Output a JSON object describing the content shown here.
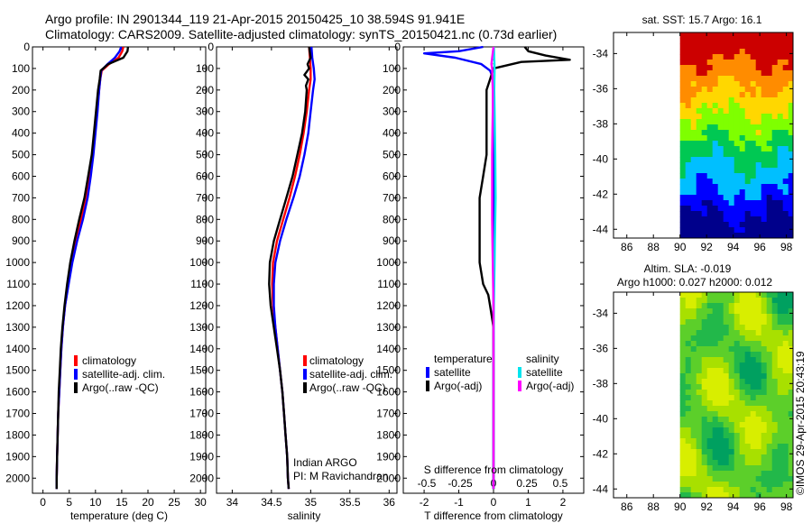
{
  "title_line1": "Argo profile: IN 2901344_119 21-Apr-2015 20150425_10 38.594S 91.941E",
  "title_line2": "Climatology: CARS2009. Satellite-adjusted climatology: synTS_20150421.nc (0.73d earlier)",
  "credit": "©IMOS 29-Apr-2015 20:43:19",
  "chart_data": [
    {
      "id": "temperature",
      "type": "line",
      "xlabel": "temperature (deg C)",
      "xlim": [
        -2,
        31
      ],
      "xticks": [
        "0",
        "5",
        "10",
        "15",
        "20",
        "25",
        "30"
      ],
      "ylim": [
        2070,
        0
      ],
      "yticks": [
        "0",
        "100",
        "200",
        "300",
        "400",
        "500",
        "600",
        "700",
        "800",
        "900",
        "1000",
        "1100",
        "1200",
        "1300",
        "1400",
        "1500",
        "1600",
        "1700",
        "1800",
        "1900",
        "2000"
      ],
      "legend": [
        "climatology",
        "satellite-adj. clim.",
        "Argo(..raw -QC)"
      ],
      "colors": [
        "#ff0000",
        "#0000ff",
        "#000000"
      ],
      "series": [
        {
          "name": "climatology",
          "depth": [
            0,
            20,
            50,
            80,
            110,
            150,
            200,
            300,
            400,
            500,
            600,
            700,
            800,
            900,
            1000,
            1100,
            1200,
            1300,
            1400,
            1500,
            1600,
            1700,
            1800,
            1900,
            2000,
            2050
          ],
          "values": [
            15.3,
            15.1,
            14.4,
            12.6,
            11.2,
            10.9,
            10.7,
            10.3,
            9.9,
            9.5,
            8.9,
            8.3,
            7.3,
            6.3,
            5.5,
            4.8,
            4.2,
            3.8,
            3.5,
            3.3,
            3.1,
            2.9,
            2.8,
            2.7,
            2.6,
            2.6
          ]
        },
        {
          "name": "satellite-adj. clim.",
          "depth": [
            0,
            20,
            50,
            80,
            110,
            150,
            200,
            300,
            400,
            500,
            600,
            700,
            800,
            900,
            1000,
            1100,
            1200,
            1300,
            1400,
            1500,
            1600,
            1700,
            1800,
            1900,
            2000,
            2050
          ],
          "values": [
            14.9,
            14.6,
            13.7,
            12.3,
            11.1,
            10.9,
            10.7,
            10.4,
            10.0,
            9.6,
            9.1,
            8.5,
            7.6,
            6.5,
            5.6,
            4.9,
            4.2,
            3.8,
            3.5,
            3.3,
            3.1,
            2.9,
            2.8,
            2.7,
            2.6,
            2.6
          ]
        },
        {
          "name": "Argo(..raw -QC)",
          "depth": [
            0,
            20,
            50,
            80,
            110,
            150,
            200,
            300,
            400,
            500,
            600,
            700,
            800,
            900,
            1000,
            1100,
            1200,
            1300,
            1400,
            1500,
            1600,
            1700,
            1800,
            1900,
            2000,
            2050
          ],
          "values": [
            16.2,
            16.1,
            15.3,
            12.4,
            11.0,
            10.8,
            10.5,
            10.1,
            9.7,
            9.3,
            8.6,
            7.9,
            6.9,
            6.0,
            5.2,
            4.6,
            4.1,
            3.7,
            3.4,
            3.2,
            3.0,
            2.9,
            2.8,
            2.7,
            2.6,
            2.6
          ]
        }
      ]
    },
    {
      "id": "salinity",
      "type": "line",
      "xlabel": "salinity",
      "xlim": [
        33.8,
        36.1
      ],
      "xticks": [
        "34",
        "34.5",
        "35",
        "35.5",
        "36"
      ],
      "ylim": [
        2070,
        0
      ],
      "legend": [
        "climatology",
        "satellite-adj. clim.",
        "Argo(..raw -QC)"
      ],
      "colors": [
        "#ff0000",
        "#0000ff",
        "#000000"
      ],
      "note_line1": "Indian ARGO",
      "note_line2": "PI: M Ravichandran",
      "series": [
        {
          "name": "climatology",
          "depth": [
            0,
            50,
            100,
            150,
            200,
            300,
            400,
            500,
            600,
            700,
            800,
            900,
            1000,
            1100,
            1200,
            1300,
            1400,
            1500,
            1600,
            1700,
            1800,
            1900,
            2000,
            2050
          ],
          "values": [
            34.98,
            34.99,
            35.0,
            35.0,
            34.98,
            34.95,
            34.91,
            34.86,
            34.8,
            34.73,
            34.65,
            34.57,
            34.52,
            34.51,
            34.52,
            34.55,
            34.58,
            34.61,
            34.64,
            34.66,
            34.68,
            34.7,
            34.71,
            34.72
          ]
        },
        {
          "name": "satellite-adj. clim.",
          "depth": [
            0,
            50,
            100,
            150,
            200,
            300,
            400,
            500,
            600,
            700,
            800,
            900,
            1000,
            1100,
            1200,
            1300,
            1400,
            1500,
            1600,
            1700,
            1800,
            1900,
            2000,
            2050
          ],
          "values": [
            35.01,
            35.02,
            35.04,
            35.05,
            35.03,
            35.0,
            34.97,
            34.92,
            34.86,
            34.78,
            34.69,
            34.61,
            34.55,
            34.53,
            34.53,
            34.55,
            34.58,
            34.61,
            34.64,
            34.66,
            34.68,
            34.7,
            34.71,
            34.72
          ]
        },
        {
          "name": "Argo(..raw -QC)",
          "depth": [
            0,
            50,
            80,
            100,
            130,
            150,
            180,
            200,
            300,
            400,
            500,
            600,
            700,
            800,
            900,
            1000,
            1100,
            1200,
            1300,
            1400,
            1500,
            1600,
            1700,
            1800,
            1900,
            2000,
            2050
          ],
          "values": [
            34.98,
            35.0,
            34.96,
            34.98,
            34.92,
            34.97,
            34.94,
            34.95,
            34.93,
            34.89,
            34.83,
            34.77,
            34.69,
            34.61,
            34.53,
            34.48,
            34.47,
            34.49,
            34.53,
            34.57,
            34.61,
            34.64,
            34.66,
            34.68,
            34.7,
            34.71,
            34.72
          ]
        }
      ]
    },
    {
      "id": "differences",
      "type": "line",
      "xlabel": "T difference from climatology",
      "xlabel_top": "S difference from climatology",
      "xlim": [
        -2.6,
        2.6
      ],
      "xticks": [
        "-2",
        "-1",
        "0",
        "1",
        "2"
      ],
      "xticks_top": [
        "-0.5",
        "-0.25",
        "0",
        "0.25",
        "0.5"
      ],
      "ylim": [
        2070,
        0
      ],
      "legend_header_left": "temperature",
      "legend_header_right": "salinity",
      "legend": [
        "satellite",
        "Argo(-adj)",
        "satellite",
        "Argo(-adj)"
      ],
      "colors": [
        "#0000ff",
        "#000000",
        "#00e5ee",
        "#ff00ff"
      ],
      "series": [
        {
          "name": "temperature satellite",
          "depth": [
            0,
            20,
            30,
            50,
            80,
            110,
            150,
            200,
            300,
            500,
            1000,
            2000,
            2050
          ],
          "values": [
            -0.3,
            -1.0,
            -2.0,
            -1.1,
            -0.35,
            -0.1,
            0.0,
            0.0,
            0.0,
            0.0,
            0.0,
            0.0,
            0.0
          ]
        },
        {
          "name": "temperature Argo(-adj)",
          "depth": [
            0,
            20,
            40,
            60,
            70,
            100,
            150,
            200,
            300,
            400,
            500,
            600,
            700,
            800,
            900,
            1000,
            1100,
            1150,
            1200,
            1250,
            1300,
            1400,
            1500,
            1600,
            1700,
            1800,
            1900,
            2000,
            2050
          ],
          "values": [
            0.9,
            1.0,
            1.5,
            2.2,
            0.8,
            0.0,
            -0.1,
            -0.2,
            -0.2,
            -0.2,
            -0.2,
            -0.3,
            -0.4,
            -0.4,
            -0.4,
            -0.4,
            -0.3,
            -0.15,
            -0.1,
            -0.05,
            0.0,
            0.0,
            0.0,
            0.0,
            0.0,
            0.0,
            0.0,
            0.0,
            0.0
          ]
        },
        {
          "name": "salinity satellite",
          "depth": [
            0,
            50,
            100,
            200,
            300,
            500,
            700,
            900,
            1000,
            1100,
            1200,
            1500,
            2000,
            2050
          ],
          "values": [
            0.01,
            0.02,
            0.03,
            0.02,
            0.03,
            0.05,
            0.06,
            0.04,
            0.03,
            0.02,
            0.01,
            0.0,
            0.0,
            0.0
          ]
        },
        {
          "name": "salinity Argo(-adj)",
          "depth": [
            0,
            50,
            80,
            100,
            150,
            200,
            300,
            400,
            500,
            600,
            700,
            800,
            900,
            1000,
            1100,
            1200,
            1300,
            2000,
            2050
          ],
          "values": [
            0.0,
            -0.04,
            -0.06,
            -0.04,
            -0.03,
            -0.02,
            -0.02,
            -0.03,
            -0.04,
            -0.04,
            -0.04,
            -0.04,
            -0.03,
            -0.02,
            -0.01,
            0.0,
            0.0,
            0.0,
            0.0
          ]
        }
      ]
    },
    {
      "id": "sst_map",
      "type": "heatmap",
      "title": "sat. SST: 15.7 Argo: 16.1",
      "xticks": [
        "86",
        "88",
        "90",
        "92",
        "94",
        "96",
        "98"
      ],
      "yticks": [
        "-34",
        "-36",
        "-38",
        "-40",
        "-42",
        "-44"
      ],
      "xlim": [
        85,
        98.5
      ],
      "ylim": [
        -44.5,
        -32.8
      ],
      "data_lon_range": [
        90,
        98.5
      ],
      "colormap": [
        "#00008b",
        "#0000ff",
        "#00bfff",
        "#00c853",
        "#7fff00",
        "#ffd700",
        "#ff8c00",
        "#cc0000"
      ]
    },
    {
      "id": "sla_map",
      "type": "heatmap",
      "title_line1": "Altim. SLA: -0.019",
      "title_line2": "Argo h1000: 0.027 h2000: 0.012",
      "xticks": [
        "86",
        "88",
        "90",
        "92",
        "94",
        "96",
        "98"
      ],
      "yticks": [
        "-34",
        "-36",
        "-38",
        "-40",
        "-42",
        "-44"
      ],
      "xlim": [
        85,
        98.5
      ],
      "ylim": [
        -44.5,
        -32.8
      ],
      "data_lon_range": [
        90,
        98.5
      ],
      "colormap": [
        "#00a060",
        "#22b84a",
        "#5ccf2a",
        "#a8e000",
        "#d8ee00"
      ]
    }
  ]
}
